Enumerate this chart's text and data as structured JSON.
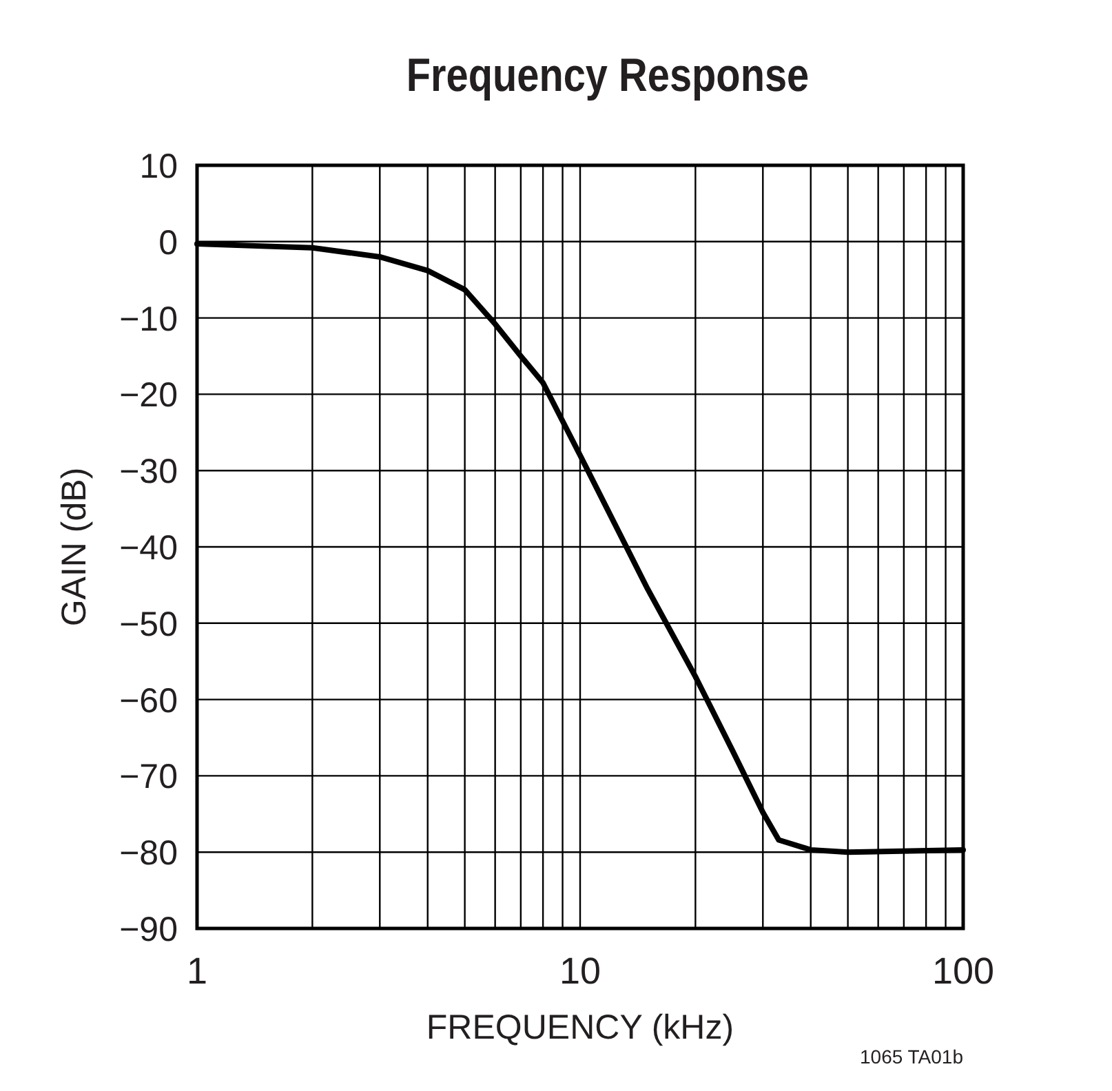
{
  "chart_data": {
    "type": "line",
    "title": "Frequency Response",
    "xlabel": "FREQUENCY (kHz)",
    "ylabel": "GAIN (dB)",
    "log": "x",
    "grid": true,
    "marker": "none",
    "line_style": "solid",
    "xlim": [
      1,
      100
    ],
    "xticks": [
      1,
      {
        "value": 2,
        "label": null
      },
      {
        "value": 3,
        "label": null
      },
      {
        "value": 4,
        "label": null
      },
      {
        "value": 5,
        "label": null
      },
      {
        "value": 6,
        "label": null
      },
      {
        "value": 7,
        "label": null
      },
      {
        "value": 8,
        "label": null
      },
      {
        "value": 9,
        "label": null
      },
      10,
      {
        "value": 20,
        "label": null
      },
      {
        "value": 30,
        "label": null
      },
      {
        "value": 40,
        "label": null
      },
      {
        "value": 50,
        "label": null
      },
      {
        "value": 60,
        "label": null
      },
      {
        "value": 70,
        "label": null
      },
      {
        "value": 80,
        "label": null
      },
      {
        "value": 90,
        "label": null
      },
      100
    ],
    "ylim": [
      -90,
      10
    ],
    "yticks": [
      10,
      0,
      {
        "value": -10,
        "label": "−10"
      },
      {
        "value": -20,
        "label": "−20"
      },
      {
        "value": -30,
        "label": "−30"
      },
      {
        "value": -40,
        "label": "−40"
      },
      {
        "value": -50,
        "label": "−50"
      },
      {
        "value": -60,
        "label": "−60"
      },
      {
        "value": -70,
        "label": "−70"
      },
      {
        "value": -80,
        "label": "−80"
      },
      {
        "value": -90,
        "label": "−90"
      }
    ],
    "series": [
      {
        "color": "#000000",
        "x": [
          1,
          2,
          3,
          4,
          5,
          6,
          7,
          8,
          10,
          15,
          20,
          25,
          30,
          33,
          40,
          50,
          100
        ],
        "values": [
          -0.3,
          -0.8,
          -2,
          -3.8,
          -6.3,
          -10.8,
          -15,
          -18.5,
          -28,
          -45.5,
          -57,
          -66.7,
          -74.8,
          -78.4,
          -79.7,
          -80,
          -79.7
        ]
      }
    ],
    "annotations": [
      "1065 TA01b"
    ]
  }
}
